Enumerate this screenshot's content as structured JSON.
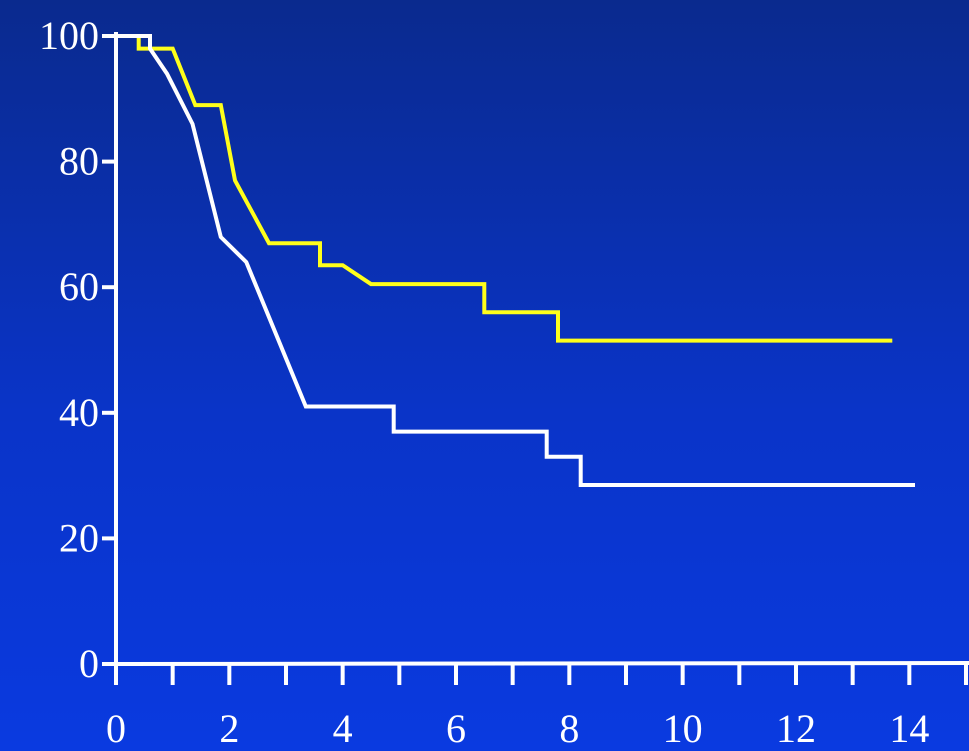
{
  "chart_data": {
    "type": "line",
    "title": "",
    "xlabel": "",
    "ylabel": "",
    "xlim": [
      0,
      15
    ],
    "ylim": [
      0,
      100
    ],
    "x_ticks": [
      0,
      1,
      2,
      3,
      4,
      5,
      6,
      7,
      8,
      9,
      10,
      11,
      12,
      13,
      14,
      15
    ],
    "x_tick_labels": [
      "0",
      "2",
      "4",
      "6",
      "8",
      "10",
      "12",
      "14"
    ],
    "x_tick_label_values": [
      0,
      2,
      4,
      6,
      8,
      10,
      12,
      14
    ],
    "y_tick_labels": [
      "0",
      "20",
      "40",
      "60",
      "80",
      "100"
    ],
    "y_tick_label_values": [
      0,
      20,
      40,
      60,
      80,
      100
    ],
    "grid": false,
    "legend": "none",
    "colors": {
      "axis": "#ffffff",
      "series_yellow": "#ffff1a",
      "series_white": "#ffffff"
    },
    "series": [
      {
        "color": "#ffff1a",
        "points": [
          [
            0.4,
            100
          ],
          [
            0.4,
            98
          ],
          [
            1.0,
            98
          ],
          [
            1.4,
            89
          ],
          [
            1.85,
            89
          ],
          [
            2.1,
            77
          ],
          [
            2.7,
            67
          ],
          [
            3.6,
            67
          ],
          [
            3.6,
            63.5
          ],
          [
            4.0,
            63.5
          ],
          [
            4.5,
            60.5
          ],
          [
            6.5,
            60.5
          ],
          [
            6.5,
            56
          ],
          [
            7.8,
            56
          ],
          [
            7.8,
            51.5
          ],
          [
            13.7,
            51.5
          ]
        ]
      },
      {
        "color": "#ffffff",
        "points": [
          [
            0,
            100
          ],
          [
            0.6,
            100
          ],
          [
            0.6,
            98
          ],
          [
            0.9,
            94
          ],
          [
            1.35,
            86
          ],
          [
            1.85,
            68
          ],
          [
            2.3,
            64
          ],
          [
            3.35,
            41
          ],
          [
            4.9,
            41
          ],
          [
            4.9,
            37
          ],
          [
            7.6,
            37
          ],
          [
            7.6,
            33
          ],
          [
            8.2,
            33
          ],
          [
            8.2,
            28.5
          ],
          [
            14.1,
            28.5
          ]
        ]
      }
    ]
  }
}
